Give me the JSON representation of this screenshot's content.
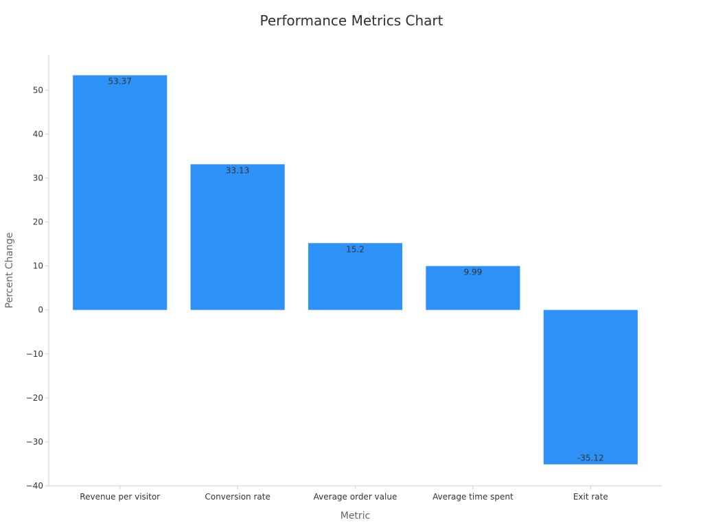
{
  "chart_data": {
    "type": "bar",
    "title": "Performance Metrics Chart",
    "xlabel": "Metric",
    "ylabel": "Percent Change",
    "categories": [
      "Revenue per visitor",
      "Conversion rate",
      "Average order value",
      "Average time spent",
      "Exit rate"
    ],
    "values": [
      53.37,
      33.13,
      15.2,
      9.99,
      -35.12
    ],
    "data_labels": [
      "53.37",
      "33.13",
      "15.2",
      "9.99",
      "-35.12"
    ],
    "ylim": [
      -40,
      58
    ],
    "yticks": [
      -40,
      -30,
      -20,
      -10,
      0,
      10,
      20,
      30,
      40,
      50
    ],
    "ytick_labels": [
      "−40",
      "−30",
      "−20",
      "−10",
      "0",
      "10",
      "20",
      "30",
      "40",
      "50"
    ],
    "grid": false,
    "legend": "none",
    "colors": {
      "bar": "#2e91f7",
      "axis": "#cccccc",
      "text": "#333333"
    }
  }
}
